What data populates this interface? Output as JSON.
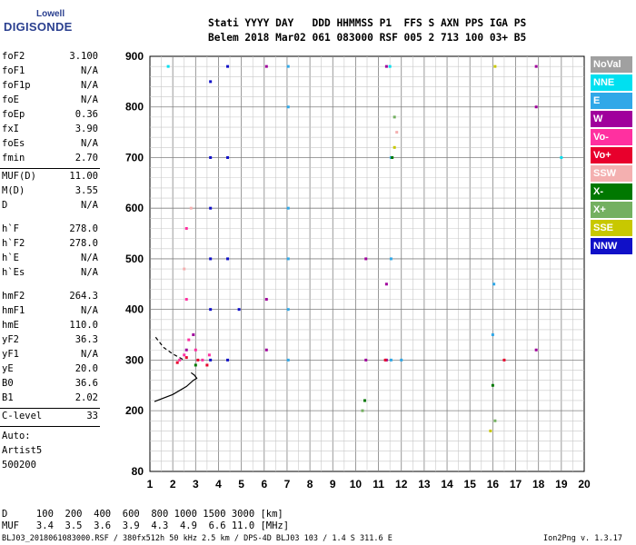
{
  "logo": {
    "line1": "Lowell",
    "line2": "DIGISONDE"
  },
  "header": {
    "line1": "Stati YYYY DAY   DDD HHMMSS P1  FFS S AXN PPS IGA PS",
    "line2": "Belem 2018 Mar02 061 083000 RSF 005 2 713 100 03+ B5"
  },
  "params_group1": [
    {
      "k": "foF2",
      "v": "3.100"
    },
    {
      "k": "foF1",
      "v": "N/A"
    },
    {
      "k": "foF1p",
      "v": "N/A"
    },
    {
      "k": "foE",
      "v": "N/A"
    },
    {
      "k": "foEp",
      "v": "0.36"
    },
    {
      "k": "fxI",
      "v": "3.90"
    },
    {
      "k": "foEs",
      "v": "N/A"
    },
    {
      "k": "fmin",
      "v": "2.70"
    }
  ],
  "params_group2": [
    {
      "k": "MUF(D)",
      "v": "11.00"
    },
    {
      "k": "M(D)",
      "v": "3.55"
    },
    {
      "k": "D",
      "v": "N/A"
    }
  ],
  "params_group3": [
    {
      "k": "h`F",
      "v": "278.0"
    },
    {
      "k": "h`F2",
      "v": "278.0"
    },
    {
      "k": "h`E",
      "v": "N/A"
    },
    {
      "k": "h`Es",
      "v": "N/A"
    }
  ],
  "params_group4": [
    {
      "k": "hmF2",
      "v": "264.3"
    },
    {
      "k": "hmF1",
      "v": "N/A"
    },
    {
      "k": "hmE",
      "v": "110.0"
    },
    {
      "k": "yF2",
      "v": "36.3"
    },
    {
      "k": "yF1",
      "v": "N/A"
    },
    {
      "k": "yE",
      "v": "20.0"
    },
    {
      "k": "B0",
      "v": "36.6"
    },
    {
      "k": "B1",
      "v": "2.02"
    }
  ],
  "clevel": {
    "k": "C-level",
    "v": "33"
  },
  "auto": [
    "Auto:",
    "Artist5",
    "500200"
  ],
  "legend": [
    {
      "label": "NoVal",
      "color": "#a0a0a0"
    },
    {
      "label": "NNE",
      "color": "#00e0f0"
    },
    {
      "label": "E",
      "color": "#30a8e8"
    },
    {
      "label": "W",
      "color": "#a0009c"
    },
    {
      "label": "Vo-",
      "color": "#ff30a0"
    },
    {
      "label": "Vo+",
      "color": "#e8002c"
    },
    {
      "label": "SSW",
      "color": "#f4b0b0"
    },
    {
      "label": "X-",
      "color": "#007800"
    },
    {
      "label": "X+",
      "color": "#74b060"
    },
    {
      "label": "SSE",
      "color": "#c8c800"
    },
    {
      "label": "NNW",
      "color": "#1010c8"
    }
  ],
  "muf_table": {
    "line1": "D     100  200  400  600  800 1000 1500 3000 [km]",
    "line2": "MUF   3.4  3.5  3.6  3.9  4.3  4.9  6.6 11.0 [MHz]"
  },
  "footer": {
    "left": "BLJ03_2018061083000.RSF / 380fx512h 50 kHz 2.5 km / DPS-4D BLJ03 103 / 1.4 S 311.6 E",
    "right": "Ion2Png v. 1.3.17"
  },
  "chart_data": {
    "type": "scatter",
    "title": "",
    "xlabel": "",
    "ylabel": "",
    "xlim": [
      1,
      20
    ],
    "ylim": [
      80,
      900
    ],
    "x_ticks": [
      1,
      2,
      3,
      4,
      5,
      6,
      7,
      8,
      9,
      10,
      11,
      12,
      13,
      14,
      15,
      16,
      17,
      18,
      19,
      20
    ],
    "y_ticks": [
      80,
      200,
      300,
      400,
      500,
      600,
      700,
      800,
      900
    ],
    "grid": true,
    "series": [
      {
        "name": "E",
        "color": "#30a8e8",
        "points": [
          [
            7.05,
            300
          ],
          [
            7.05,
            400
          ],
          [
            7.05,
            500
          ],
          [
            7.05,
            600
          ],
          [
            7.05,
            800
          ],
          [
            7.05,
            880
          ],
          [
            11.55,
            300
          ],
          [
            11.55,
            500
          ],
          [
            11.55,
            700
          ],
          [
            16.0,
            350
          ],
          [
            16.05,
            450
          ],
          [
            12.0,
            300
          ]
        ]
      },
      {
        "name": "W",
        "color": "#a0009c",
        "points": [
          [
            6.1,
            320
          ],
          [
            6.1,
            420
          ],
          [
            6.1,
            880
          ],
          [
            10.45,
            300
          ],
          [
            10.45,
            500
          ],
          [
            11.35,
            300
          ],
          [
            11.35,
            450
          ],
          [
            11.35,
            880
          ],
          [
            17.9,
            320
          ],
          [
            17.9,
            800
          ],
          [
            17.9,
            880
          ],
          [
            2.6,
            320
          ],
          [
            2.9,
            350
          ]
        ]
      },
      {
        "name": "Vo-",
        "color": "#ff30a0",
        "points": [
          [
            2.3,
            300
          ],
          [
            2.5,
            310
          ],
          [
            2.7,
            340
          ],
          [
            3.0,
            320
          ],
          [
            3.3,
            300
          ],
          [
            3.6,
            310
          ],
          [
            2.6,
            420
          ],
          [
            2.6,
            560
          ]
        ]
      },
      {
        "name": "Vo+",
        "color": "#e8002c",
        "points": [
          [
            2.2,
            295
          ],
          [
            2.6,
            305
          ],
          [
            3.1,
            300
          ],
          [
            3.5,
            290
          ],
          [
            11.3,
            300
          ],
          [
            16.5,
            300
          ]
        ]
      },
      {
        "name": "X-",
        "color": "#007800",
        "points": [
          [
            10.4,
            220
          ],
          [
            11.6,
            700
          ],
          [
            16.0,
            250
          ],
          [
            3.0,
            290
          ]
        ]
      },
      {
        "name": "X+",
        "color": "#74b060",
        "points": [
          [
            11.7,
            780
          ],
          [
            10.3,
            200
          ],
          [
            16.1,
            180
          ]
        ]
      },
      {
        "name": "SSE",
        "color": "#c8c800",
        "points": [
          [
            11.7,
            720
          ],
          [
            15.9,
            160
          ],
          [
            16.1,
            880
          ]
        ]
      },
      {
        "name": "NNW",
        "color": "#1010c8",
        "points": [
          [
            3.65,
            850
          ],
          [
            3.65,
            700
          ],
          [
            3.65,
            600
          ],
          [
            3.65,
            500
          ],
          [
            3.65,
            400
          ],
          [
            3.65,
            300
          ],
          [
            4.4,
            880
          ],
          [
            4.4,
            700
          ],
          [
            4.4,
            500
          ],
          [
            4.4,
            300
          ],
          [
            4.9,
            400
          ]
        ]
      },
      {
        "name": "NNE",
        "color": "#00e0f0",
        "points": [
          [
            1.8,
            880
          ],
          [
            11.5,
            880
          ],
          [
            19.0,
            700
          ]
        ]
      },
      {
        "name": "SSW",
        "color": "#f4b0b0",
        "points": [
          [
            2.5,
            480
          ],
          [
            2.8,
            600
          ],
          [
            11.8,
            750
          ]
        ]
      }
    ],
    "traces": [
      {
        "name": "profile",
        "color": "#000000",
        "points": [
          [
            1.2,
            218
          ],
          [
            2.0,
            232
          ],
          [
            2.6,
            248
          ],
          [
            2.9,
            260
          ],
          [
            3.05,
            264
          ],
          [
            2.95,
            270
          ],
          [
            2.8,
            275
          ]
        ]
      },
      {
        "name": "profile-dashed",
        "color": "#000000",
        "dashed": true,
        "points": [
          [
            1.25,
            345
          ],
          [
            1.6,
            325
          ],
          [
            2.0,
            312
          ],
          [
            2.5,
            300
          ]
        ]
      }
    ]
  }
}
